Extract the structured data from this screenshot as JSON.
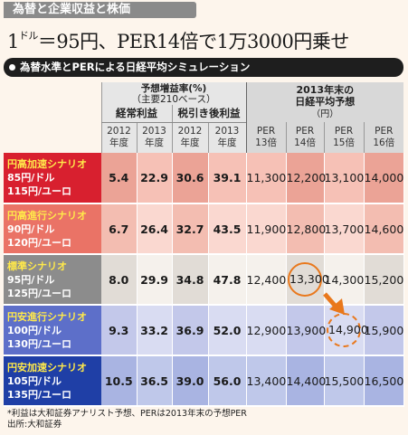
{
  "tag": "為替と企業収益と株価",
  "headline": {
    "pre": "1",
    "unit": "ドル",
    "post": "＝95円、PER14倍で1万3000円乗せ"
  },
  "subtitle": "為替水準とPERによる日経平均シミュレーション",
  "header": {
    "growth_title": "予想増益率(%)",
    "growth_sub": "（主要210ベース）",
    "ordinary": "経常利益",
    "net": "税引き後利益",
    "forecast_title": "2013年末の",
    "forecast_title2": "日経平均予想",
    "forecast_unit": "（円）",
    "years": [
      {
        "y": "2012",
        "n": "年度"
      },
      {
        "y": "2013",
        "n": "年度"
      },
      {
        "y": "2012",
        "n": "年度"
      },
      {
        "y": "2013",
        "n": "年度"
      }
    ],
    "pers": [
      {
        "p": "PER",
        "n": "13倍"
      },
      {
        "p": "PER",
        "n": "14倍"
      },
      {
        "p": "PER",
        "n": "15倍"
      },
      {
        "p": "PER",
        "n": "16倍"
      }
    ]
  },
  "rows": [
    {
      "title": "円高加速シナリオ",
      "l1": "85円/ドル",
      "l2": "115円/ユーロ",
      "g": [
        "5.4",
        "22.9",
        "30.6",
        "39.1"
      ],
      "f": [
        "11,300",
        "12,200",
        "13,100",
        "14,000"
      ],
      "colors": {
        "label": "#d8202f",
        "light": "#f6c1b6",
        "dark": "#eba396"
      }
    },
    {
      "title": "円高進行シナリオ",
      "l1": "90円/ドル",
      "l2": "120円/ユーロ",
      "g": [
        "6.7",
        "26.4",
        "32.7",
        "43.5"
      ],
      "f": [
        "11,900",
        "12,800",
        "13,700",
        "14,600"
      ],
      "colors": {
        "label": "#ea7366",
        "light": "#fad8d0",
        "dark": "#f3bdb1"
      }
    },
    {
      "title": "標準シナリオ",
      "l1": "95円/ドル",
      "l2": "125円/ユーロ",
      "g": [
        "8.0",
        "29.9",
        "34.8",
        "47.8"
      ],
      "f": [
        "12,400",
        "13,300",
        "14,300",
        "15,200"
      ],
      "colors": {
        "label": "#8c8c8c",
        "light": "#f5f1ec",
        "dark": "#e1dcd6"
      }
    },
    {
      "title": "円安進行シナリオ",
      "l1": "100円/ドル",
      "l2": "130円/ユーロ",
      "g": [
        "9.3",
        "33.2",
        "36.9",
        "52.0"
      ],
      "f": [
        "12,900",
        "13,900",
        "14,900",
        "15,900"
      ],
      "colors": {
        "label": "#5d6fc9",
        "light": "#d9dcf2",
        "dark": "#c3c8ea"
      }
    },
    {
      "title": "円安加速シナリオ",
      "l1": "105円/ドル",
      "l2": "135円/ユーロ",
      "g": [
        "10.5",
        "36.5",
        "39.0",
        "56.0"
      ],
      "f": [
        "13,400",
        "14,400",
        "15,500",
        "16,500"
      ],
      "colors": {
        "label": "#1f3fa6",
        "light": "#bfc8ea",
        "dark": "#a9b4e2"
      }
    }
  ],
  "highlights": {
    "solid": {
      "row": 2,
      "col": 1
    },
    "dashed": {
      "row": 3,
      "col": 2
    }
  },
  "notes": [
    "*利益は大和証券アナリスト予想、PERは2013年末の予想PER",
    "出所:大和証券"
  ],
  "accent": "#e9781c"
}
